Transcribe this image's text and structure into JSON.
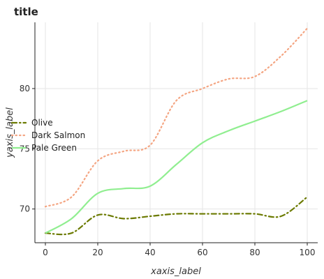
{
  "chart_data": {
    "type": "line",
    "title": "title",
    "xlabel": "xaxis_label",
    "ylabel": "yaxis_label",
    "xlim": [
      -4,
      104
    ],
    "ylim": [
      67.2,
      85.5
    ],
    "x_ticks": [
      0,
      20,
      40,
      60,
      80,
      100
    ],
    "y_ticks": [
      70,
      75,
      80
    ],
    "grid": true,
    "legend_position": "left",
    "series": [
      {
        "name": "Olive",
        "color": "#6b7a00",
        "dash": "dashdot",
        "x": [
          0,
          10,
          20,
          30,
          40,
          50,
          60,
          70,
          80,
          90,
          100
        ],
        "y": [
          68.0,
          68.0,
          69.5,
          69.2,
          69.4,
          69.6,
          69.6,
          69.6,
          69.6,
          69.4,
          71.0
        ]
      },
      {
        "name": "Dark Salmon",
        "color": "#f4a582",
        "dash": "dotted",
        "x": [
          0,
          10,
          20,
          30,
          40,
          50,
          60,
          70,
          80,
          90,
          100
        ],
        "y": [
          70.2,
          71.0,
          74.0,
          74.8,
          75.3,
          79.0,
          80.0,
          80.8,
          81.0,
          82.7,
          85.0
        ]
      },
      {
        "name": "Pale Green",
        "color": "#90ee90",
        "dash": "solid",
        "x": [
          0,
          10,
          20,
          30,
          40,
          50,
          60,
          70,
          80,
          90,
          100
        ],
        "y": [
          68.0,
          69.2,
          71.3,
          71.7,
          71.9,
          73.7,
          75.5,
          76.5,
          77.3,
          78.1,
          79.0
        ]
      }
    ]
  }
}
